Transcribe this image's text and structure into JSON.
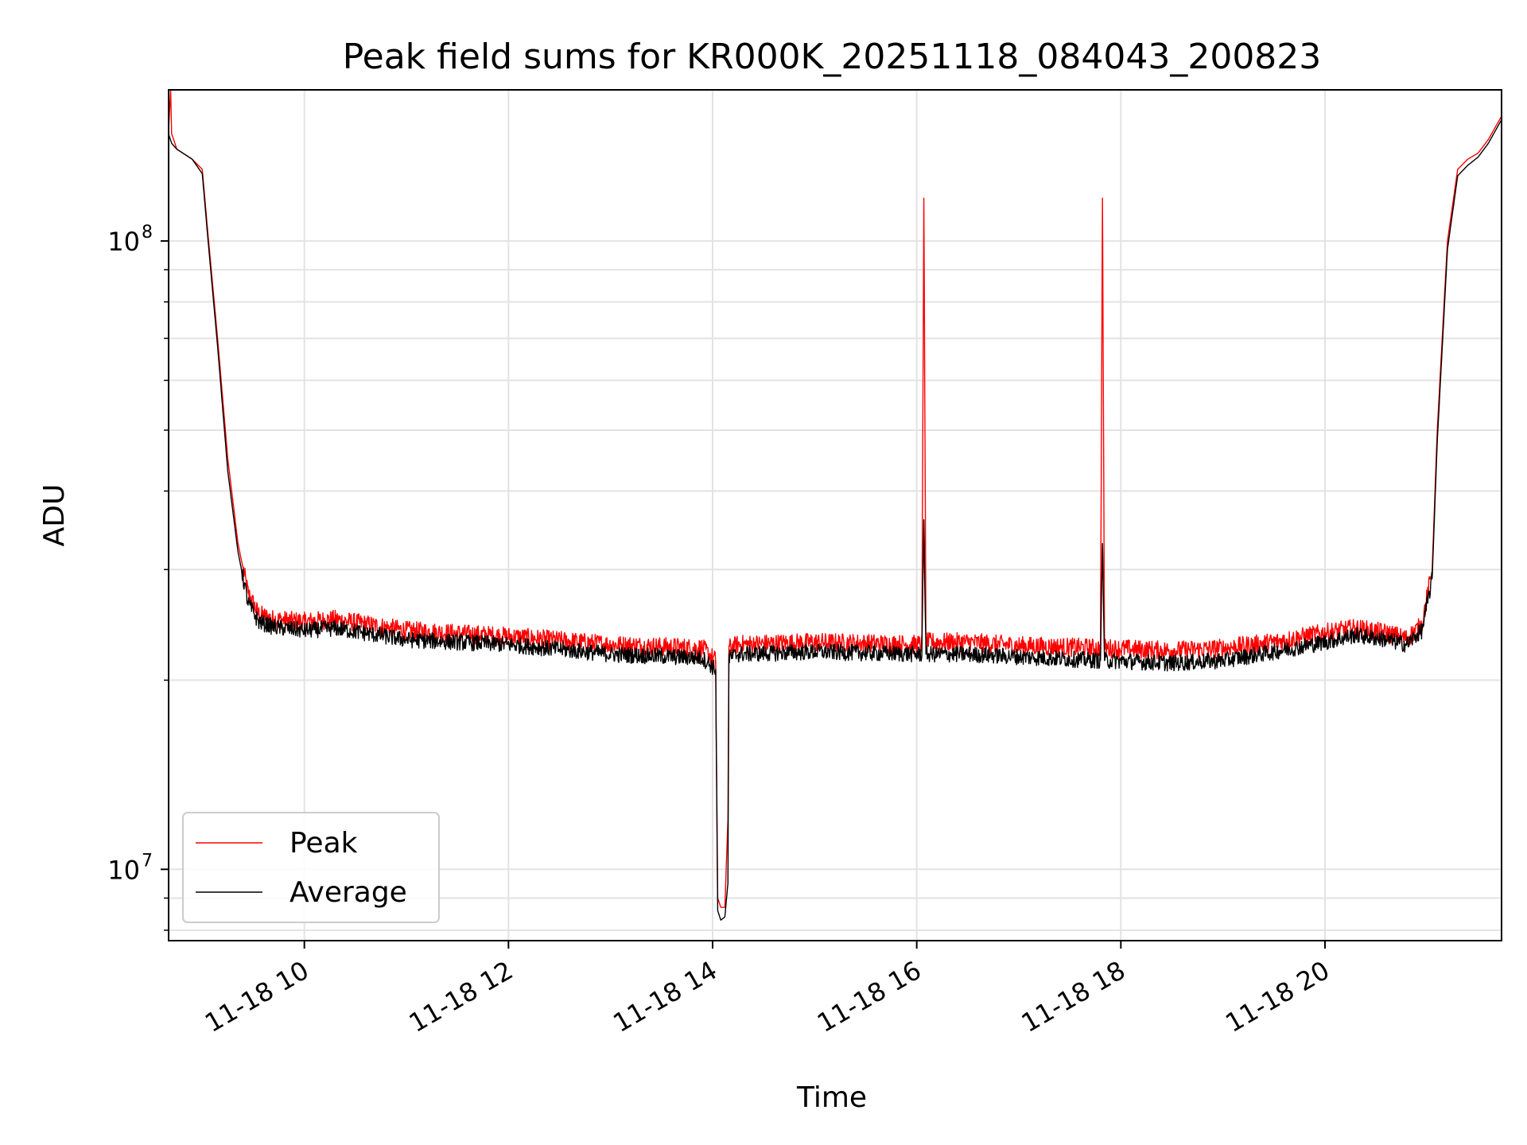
{
  "chart_data": {
    "type": "line",
    "title": "Peak field sums for KR000K_20251118_084043_200823",
    "xlabel": "Time",
    "ylabel": "ADU",
    "yscale": "log",
    "xlim_hours": [
      8.67,
      21.73
    ],
    "ylim": [
      7700000,
      174000000
    ],
    "grid": true,
    "legend_position": "lower-left",
    "x_ticks": [
      {
        "value": 10,
        "label": "11-18 10"
      },
      {
        "value": 12,
        "label": "11-18 12"
      },
      {
        "value": 14,
        "label": "11-18 14"
      },
      {
        "value": 16,
        "label": "11-18 16"
      },
      {
        "value": 18,
        "label": "11-18 18"
      },
      {
        "value": 20,
        "label": "11-18 20"
      }
    ],
    "y_ticks": [
      {
        "value": 10000000,
        "base": "10",
        "exp": "7"
      },
      {
        "value": 100000000,
        "base": "10",
        "exp": "8"
      }
    ],
    "series": [
      {
        "name": "Peak",
        "color": "#ff0000",
        "x": [
          8.67,
          8.69,
          8.7,
          8.72,
          8.75,
          8.9,
          9.0,
          9.05,
          9.15,
          9.25,
          9.35,
          9.45,
          9.55,
          9.7,
          10.0,
          10.3,
          11.0,
          12.0,
          13.0,
          13.9,
          14.03,
          14.05,
          14.08,
          14.12,
          14.15,
          14.16,
          14.25,
          15.0,
          16.05,
          16.07,
          16.09,
          16.5,
          17.0,
          17.8,
          17.82,
          17.84,
          18.5,
          19.0,
          19.5,
          20.0,
          20.3,
          20.6,
          20.8,
          20.95,
          21.05,
          21.1,
          21.2,
          21.3,
          21.4,
          21.5,
          21.6,
          21.73
        ],
        "values": [
          150000000,
          174000000,
          148000000,
          145000000,
          140000000,
          135000000,
          130000000,
          105000000,
          70000000,
          45000000,
          33000000,
          27500000,
          25500000,
          25000000,
          24800000,
          25000000,
          24000000,
          23500000,
          22800000,
          22500000,
          21500000,
          9000000,
          8700000,
          8700000,
          12000000,
          22500000,
          22800000,
          23000000,
          22800000,
          117000000,
          23000000,
          23000000,
          22700000,
          22500000,
          117000000,
          22500000,
          22300000,
          22500000,
          23000000,
          23800000,
          24200000,
          23800000,
          23300000,
          24500000,
          30000000,
          50000000,
          100000000,
          130000000,
          135000000,
          138000000,
          145000000,
          158000000
        ]
      },
      {
        "name": "Average",
        "color": "#000000",
        "x": [
          8.67,
          8.7,
          8.75,
          8.9,
          9.0,
          9.05,
          9.15,
          9.25,
          9.35,
          9.45,
          9.55,
          9.7,
          10.0,
          10.3,
          11.0,
          12.0,
          13.0,
          13.9,
          14.03,
          14.05,
          14.08,
          14.12,
          14.15,
          14.16,
          14.25,
          15.0,
          16.05,
          16.07,
          16.09,
          16.5,
          17.0,
          17.8,
          17.82,
          17.84,
          18.5,
          19.0,
          19.5,
          20.0,
          20.3,
          20.6,
          20.8,
          20.95,
          21.05,
          21.1,
          21.2,
          21.3,
          21.4,
          21.5,
          21.6,
          21.73
        ],
        "values": [
          148000000,
          143000000,
          140000000,
          135000000,
          128000000,
          103000000,
          68000000,
          43000000,
          32000000,
          26500000,
          24800000,
          24300000,
          24000000,
          24200000,
          23200000,
          22800000,
          22000000,
          21700000,
          20800000,
          8600000,
          8300000,
          8400000,
          9500000,
          21700000,
          22000000,
          22200000,
          22000000,
          36000000,
          22000000,
          22000000,
          21800000,
          21500000,
          33000000,
          21500000,
          21300000,
          21500000,
          22200000,
          23000000,
          23600000,
          23200000,
          22800000,
          24000000,
          29000000,
          48000000,
          97000000,
          127000000,
          132000000,
          136000000,
          143000000,
          156000000
        ]
      }
    ]
  }
}
